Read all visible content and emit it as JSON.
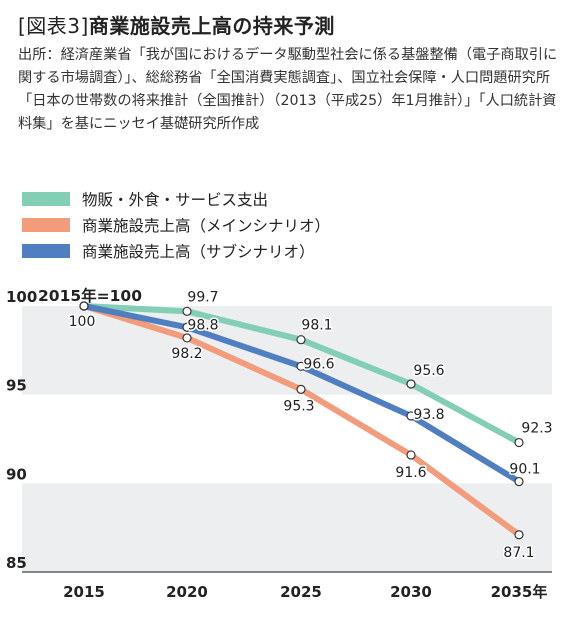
{
  "header": {
    "tag": "[図表3]",
    "title": "商業施設売上高の持来予測",
    "source": "出所：経済産業省「我が国におけるデータ駆動型社会に係る基盤整備（電子商取引に関する市場調査）」、総総務省「全国消費実態調査」、国立社会保障・人口問題研究所「日本の世帯数の将来推計（全国推計）（2013（平成25）年1月推計）」「人口統計資料集」を基にニッセイ基礎研究所作成"
  },
  "chart_data": {
    "type": "line",
    "annotation": "2015年=100",
    "x": [
      2015,
      2020,
      2025,
      2030,
      2035
    ],
    "x_tick_labels": [
      "2015",
      "2020",
      "2025",
      "2030",
      "2035年"
    ],
    "y_ticks": [
      85,
      90,
      95,
      100
    ],
    "ylim": [
      85,
      100
    ],
    "grid": "alternating horizontal bands",
    "legend_position": "top-left",
    "series": [
      {
        "name": "物販・外食・サービス支出",
        "color": "#82cfb5",
        "x": [
          2015,
          2020,
          2025,
          2030,
          2035
        ],
        "values": [
          100,
          99.7,
          98.1,
          95.6,
          92.3
        ],
        "labels": [
          "",
          "99.7",
          "98.1",
          "95.6",
          "92.3"
        ]
      },
      {
        "name": "商業施設売上高（メインシナリオ）",
        "color": "#f39c7c",
        "x": [
          2015,
          2020,
          2025,
          2030,
          2035
        ],
        "values": [
          100,
          98.2,
          95.3,
          91.6,
          87.1
        ],
        "labels": [
          "100",
          "98.2",
          "95.3",
          "91.6",
          "87.1"
        ]
      },
      {
        "name": "商業施設売上高（サブシナリオ）",
        "color": "#4f7fc0",
        "x": [
          2015,
          2020,
          2025,
          2030,
          2035
        ],
        "values": [
          100,
          98.8,
          96.6,
          93.8,
          90.1
        ],
        "labels": [
          "",
          "98.8",
          "96.6",
          "93.8",
          "90.1"
        ]
      }
    ]
  }
}
